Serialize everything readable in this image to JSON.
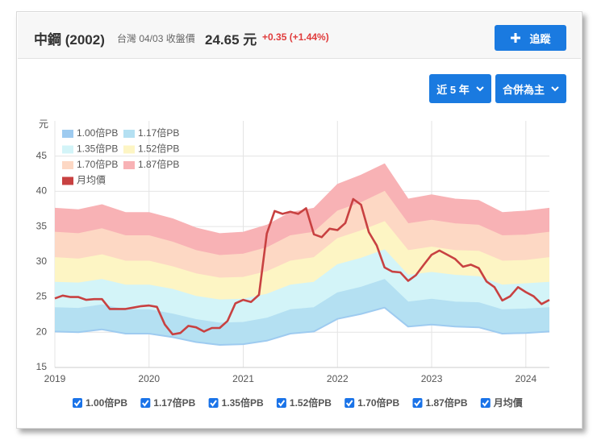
{
  "header": {
    "stock": "中鋼 (2002)",
    "market_date": "台灣 04/03 收盤價",
    "price": "24.65 元",
    "change": "+0.35 (+1.44%)",
    "follow": "追蹤"
  },
  "controls": {
    "range": "近 5 年",
    "mode": "合併為主"
  },
  "chart_data": {
    "type": "area",
    "y_label": "元",
    "xlim": [
      2019,
      2024.25
    ],
    "xticks": [
      2019,
      2020,
      2021,
      2022,
      2023,
      2024
    ],
    "ylim": [
      15,
      50
    ],
    "yticks": [
      15,
      20,
      25,
      30,
      35,
      40,
      45
    ],
    "grid": true,
    "legend": "top-left",
    "series": [
      {
        "name": "1.00倍PB",
        "color": "#9ecbf0",
        "style": "band",
        "x": [
          2019,
          2019.25,
          2019.5,
          2019.75,
          2020,
          2020.25,
          2020.5,
          2020.75,
          2021,
          2021.25,
          2021.5,
          2021.75,
          2022,
          2022.25,
          2022.5,
          2022.75,
          2023,
          2023.25,
          2023.5,
          2023.75,
          2024,
          2024.25
        ],
        "values": [
          20.1,
          20.0,
          20.4,
          19.8,
          19.8,
          19.3,
          18.6,
          18.2,
          18.3,
          18.8,
          19.8,
          20.1,
          21.9,
          22.6,
          23.5,
          20.8,
          21.1,
          20.8,
          20.7,
          19.8,
          19.9,
          20.1
        ]
      },
      {
        "name": "1.17倍PB",
        "color": "#b4e0f2",
        "style": "band",
        "x": [
          2019,
          2019.25,
          2019.5,
          2019.75,
          2020,
          2020.25,
          2020.5,
          2020.75,
          2021,
          2021.25,
          2021.5,
          2021.75,
          2022,
          2022.25,
          2022.5,
          2022.75,
          2023,
          2023.25,
          2023.5,
          2023.75,
          2024,
          2024.25
        ],
        "values": [
          23.5,
          23.4,
          23.9,
          23.2,
          23.2,
          22.6,
          21.8,
          21.3,
          21.4,
          22.0,
          23.2,
          23.5,
          25.6,
          26.4,
          27.5,
          24.3,
          24.7,
          24.3,
          24.2,
          23.2,
          23.3,
          23.5
        ]
      },
      {
        "name": "1.35倍PB",
        "color": "#d3f4f8",
        "style": "band",
        "x": [
          2019,
          2019.25,
          2019.5,
          2019.75,
          2020,
          2020.25,
          2020.5,
          2020.75,
          2021,
          2021.25,
          2021.5,
          2021.75,
          2022,
          2022.25,
          2022.5,
          2022.75,
          2023,
          2023.25,
          2023.5,
          2023.75,
          2024,
          2024.25
        ],
        "values": [
          27.1,
          27.0,
          27.5,
          26.7,
          26.7,
          26.1,
          25.1,
          24.6,
          24.7,
          25.4,
          26.7,
          27.1,
          29.6,
          30.5,
          31.7,
          28.1,
          28.5,
          28.1,
          27.9,
          26.7,
          26.9,
          27.1
        ]
      },
      {
        "name": "1.52倍PB",
        "color": "#fdf5c4",
        "style": "band",
        "x": [
          2019,
          2019.25,
          2019.5,
          2019.75,
          2020,
          2020.25,
          2020.5,
          2020.75,
          2021,
          2021.25,
          2021.5,
          2021.75,
          2022,
          2022.25,
          2022.5,
          2022.75,
          2023,
          2023.25,
          2023.5,
          2023.75,
          2024,
          2024.25
        ],
        "values": [
          30.6,
          30.4,
          31.0,
          30.1,
          30.1,
          29.3,
          28.3,
          27.7,
          27.8,
          28.6,
          30.1,
          30.6,
          33.3,
          34.4,
          35.7,
          31.6,
          32.1,
          31.6,
          31.5,
          30.1,
          30.2,
          30.6
        ]
      },
      {
        "name": "1.70倍PB",
        "color": "#fdd8c4",
        "style": "band",
        "x": [
          2019,
          2019.25,
          2019.5,
          2019.75,
          2020,
          2020.25,
          2020.5,
          2020.75,
          2021,
          2021.25,
          2021.5,
          2021.75,
          2022,
          2022.25,
          2022.5,
          2022.75,
          2023,
          2023.25,
          2023.5,
          2023.75,
          2024,
          2024.25
        ],
        "values": [
          34.2,
          34.0,
          34.7,
          33.7,
          33.7,
          32.8,
          31.6,
          30.9,
          31.1,
          32.0,
          33.7,
          34.2,
          37.2,
          38.4,
          40.0,
          35.4,
          35.9,
          35.4,
          35.2,
          33.7,
          33.8,
          34.2
        ]
      },
      {
        "name": "1.87倍PB",
        "color": "#f8b2b5",
        "style": "band",
        "x": [
          2019,
          2019.25,
          2019.5,
          2019.75,
          2020,
          2020.25,
          2020.5,
          2020.75,
          2021,
          2021.25,
          2021.5,
          2021.75,
          2022,
          2022.25,
          2022.5,
          2022.75,
          2023,
          2023.25,
          2023.5,
          2023.75,
          2024,
          2024.25
        ],
        "values": [
          37.6,
          37.4,
          38.1,
          37.0,
          37.0,
          36.1,
          34.8,
          34.0,
          34.2,
          35.2,
          37.0,
          37.6,
          41.0,
          42.3,
          43.9,
          38.9,
          39.5,
          38.9,
          38.7,
          37.0,
          37.2,
          37.6
        ]
      },
      {
        "name": "月均價",
        "color": "#c84141",
        "style": "line",
        "x": [
          2019,
          2019.083,
          2019.167,
          2019.25,
          2019.333,
          2019.417,
          2019.5,
          2019.583,
          2019.667,
          2019.75,
          2019.833,
          2019.917,
          2020,
          2020.083,
          2020.167,
          2020.25,
          2020.333,
          2020.417,
          2020.5,
          2020.583,
          2020.667,
          2020.75,
          2020.833,
          2020.917,
          2021,
          2021.083,
          2021.167,
          2021.25,
          2021.333,
          2021.417,
          2021.5,
          2021.583,
          2021.667,
          2021.75,
          2021.833,
          2021.917,
          2022,
          2022.083,
          2022.167,
          2022.25,
          2022.333,
          2022.417,
          2022.5,
          2022.583,
          2022.667,
          2022.75,
          2022.833,
          2022.917,
          2023,
          2023.083,
          2023.167,
          2023.25,
          2023.333,
          2023.417,
          2023.5,
          2023.583,
          2023.667,
          2023.75,
          2023.833,
          2023.917,
          2024,
          2024.083,
          2024.167,
          2024.25
        ],
        "values": [
          24.8,
          25.2,
          25.0,
          25.0,
          24.6,
          24.7,
          24.7,
          23.3,
          23.3,
          23.3,
          23.5,
          23.7,
          23.8,
          23.6,
          21.1,
          19.7,
          19.9,
          20.9,
          20.7,
          20.1,
          20.6,
          20.6,
          21.6,
          24.1,
          24.6,
          24.3,
          25.3,
          34.0,
          37.2,
          36.8,
          37.1,
          36.8,
          37.6,
          33.9,
          33.5,
          34.7,
          34.5,
          35.5,
          38.9,
          38.1,
          34.2,
          32.3,
          29.2,
          28.6,
          28.5,
          27.3,
          28.1,
          29.6,
          31.0,
          31.6,
          31.0,
          30.4,
          29.3,
          29.6,
          29.1,
          27.2,
          26.4,
          24.5,
          25.1,
          26.4,
          25.7,
          25.1,
          24.0,
          24.6
        ]
      }
    ]
  }
}
